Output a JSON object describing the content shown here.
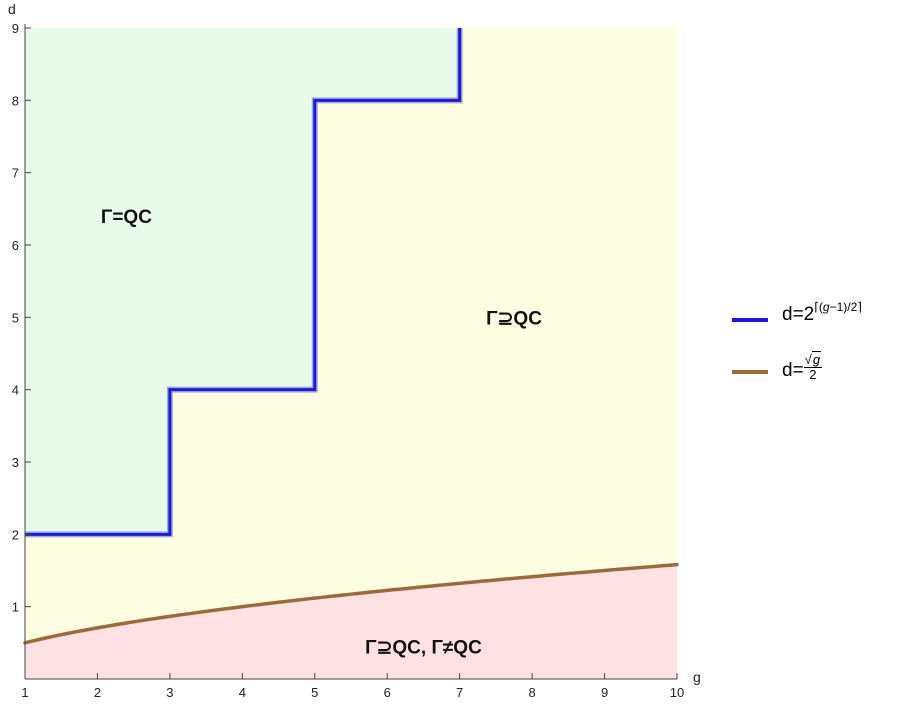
{
  "chart_data": {
    "type": "line",
    "xlabel": "g",
    "ylabel": "d",
    "xlim": [
      1,
      10
    ],
    "ylim": [
      0,
      9
    ],
    "x_ticks": [
      1,
      2,
      3,
      4,
      5,
      6,
      7,
      8,
      9,
      10
    ],
    "y_ticks": [
      1,
      2,
      3,
      4,
      5,
      6,
      7,
      8,
      9
    ],
    "grid": false,
    "legend_position": "right",
    "series": [
      {
        "name": "d=2^⌈(g−1)/2⌉",
        "color": "#1a1adb",
        "style": "step",
        "points": [
          [
            1,
            2
          ],
          [
            3,
            2
          ],
          [
            3,
            4
          ],
          [
            5,
            4
          ],
          [
            5,
            8
          ],
          [
            7,
            8
          ],
          [
            7,
            9
          ]
        ]
      },
      {
        "name": "d=√g/2",
        "color": "#9b6a3a",
        "style": "curve",
        "formula": "sqrt(g)/2",
        "x": [
          1,
          2,
          3,
          4,
          5,
          6,
          7,
          8,
          9,
          10
        ],
        "values": [
          0.5,
          0.71,
          0.87,
          1.0,
          1.12,
          1.22,
          1.32,
          1.41,
          1.5,
          1.58
        ]
      }
    ],
    "regions": [
      {
        "label": "Γ=QC",
        "color": "#e8faea",
        "label_g": 2.4,
        "label_d": 6.4
      },
      {
        "label": "Γ⊇QC",
        "color": "#fdfde2",
        "label_g": 7.75,
        "label_d": 5.0
      },
      {
        "label": "Γ⊇QC, Γ≠QC",
        "color": "#fde1e3",
        "label_g": 6.5,
        "label_d": 0.45
      }
    ]
  },
  "legend": {
    "step_prefix": "d=2",
    "step_exponent_open": "⌈(",
    "step_exponent_var": "g",
    "step_exponent_close": "−1)/2⌉",
    "curve_prefix": "d=",
    "curve_numerator_var": "g",
    "curve_denominator": "2"
  }
}
